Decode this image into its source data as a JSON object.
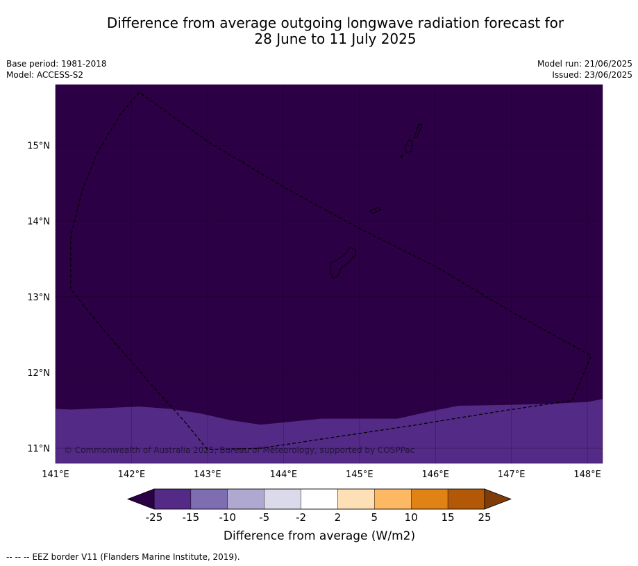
{
  "header": {
    "title_line1": "Difference from average outgoing longwave radiation forecast for",
    "title_line2": "28 June to 11 July 2025",
    "base_period": "Base period: 1981-2018",
    "model": "Model: ACCESS-S2",
    "model_run": "Model run: 21/06/2025",
    "issued": "Issued: 23/06/2025"
  },
  "map": {
    "lon_range": [
      141.0,
      148.2
    ],
    "lat_range": [
      10.8,
      15.8
    ],
    "lon_ticks": [
      "141°E",
      "142°E",
      "143°E",
      "144°E",
      "145°E",
      "146°E",
      "147°E",
      "148°E"
    ],
    "lat_ticks": [
      "15°N",
      "14°N",
      "13°N",
      "12°N",
      "11°N"
    ],
    "background_category": "< -25",
    "background_color": "#2c0044",
    "southern_band_category": "-25 to -15",
    "southern_band_color": "#532a86",
    "southern_band_boundary": [
      [
        141.0,
        11.52
      ],
      [
        141.2,
        11.51
      ],
      [
        142.1,
        11.55
      ],
      [
        142.5,
        11.52
      ],
      [
        142.9,
        11.46
      ],
      [
        143.3,
        11.37
      ],
      [
        143.7,
        11.31
      ],
      [
        144.0,
        11.34
      ],
      [
        144.5,
        11.39
      ],
      [
        145.0,
        11.39
      ],
      [
        145.5,
        11.39
      ],
      [
        145.9,
        11.48
      ],
      [
        146.3,
        11.56
      ],
      [
        146.9,
        11.57
      ],
      [
        147.6,
        11.59
      ],
      [
        148.0,
        11.61
      ],
      [
        148.2,
        11.65
      ]
    ],
    "eez_border": [
      [
        142.1,
        15.7
      ],
      [
        141.85,
        15.4
      ],
      [
        141.55,
        14.9
      ],
      [
        141.35,
        14.4
      ],
      [
        141.2,
        13.8
      ],
      [
        141.2,
        13.1
      ],
      [
        141.6,
        12.6
      ],
      [
        142.25,
        11.85
      ],
      [
        142.7,
        11.35
      ],
      [
        143.0,
        10.98
      ],
      [
        143.7,
        11.0
      ],
      [
        144.7,
        11.15
      ],
      [
        145.7,
        11.3
      ],
      [
        146.8,
        11.48
      ],
      [
        147.8,
        11.63
      ],
      [
        148.05,
        12.22
      ],
      [
        147.0,
        12.8
      ],
      [
        146.0,
        13.4
      ],
      [
        145.0,
        13.9
      ],
      [
        144.0,
        14.45
      ],
      [
        143.0,
        15.05
      ],
      [
        142.1,
        15.7
      ]
    ],
    "islands": [
      {
        "name": "Guam",
        "outline": [
          [
            144.87,
            13.65
          ],
          [
            144.95,
            13.62
          ],
          [
            144.95,
            13.55
          ],
          [
            144.85,
            13.45
          ],
          [
            144.76,
            13.38
          ],
          [
            144.72,
            13.28
          ],
          [
            144.65,
            13.24
          ],
          [
            144.62,
            13.32
          ],
          [
            144.61,
            13.44
          ],
          [
            144.68,
            13.47
          ],
          [
            144.8,
            13.55
          ],
          [
            144.87,
            13.65
          ]
        ]
      },
      {
        "name": "Rota",
        "outline": [
          [
            145.13,
            14.13
          ],
          [
            145.25,
            14.18
          ],
          [
            145.28,
            14.15
          ],
          [
            145.18,
            14.1
          ],
          [
            145.13,
            14.13
          ]
        ]
      },
      {
        "name": "Tinian",
        "outline": [
          [
            145.6,
            14.97
          ],
          [
            145.65,
            15.07
          ],
          [
            145.7,
            15.05
          ],
          [
            145.68,
            14.92
          ],
          [
            145.62,
            14.9
          ],
          [
            145.6,
            14.97
          ]
        ]
      },
      {
        "name": "Saipan",
        "outline": [
          [
            145.72,
            15.1
          ],
          [
            145.78,
            15.28
          ],
          [
            145.82,
            15.27
          ],
          [
            145.8,
            15.2
          ],
          [
            145.75,
            15.1
          ],
          [
            145.72,
            15.1
          ]
        ]
      },
      {
        "name": "Aguijan",
        "outline": [
          [
            145.54,
            14.85
          ],
          [
            145.58,
            14.87
          ],
          [
            145.55,
            14.84
          ],
          [
            145.54,
            14.85
          ]
        ]
      }
    ],
    "copyright": "© Commonwealth of Australia 2025, Bureau of Meteorology, supported by COSPPac"
  },
  "colorbar": {
    "labels": [
      "-25",
      "-15",
      "-10",
      "-5",
      "-2",
      "2",
      "5",
      "10",
      "15",
      "25"
    ],
    "colors": [
      "#532a86",
      "#7e6db1",
      "#afa8d1",
      "#dadaeb",
      "#ffffff",
      "#fee0b6",
      "#fdb863",
      "#e08214",
      "#b35806"
    ],
    "under_color": "#2c0044",
    "over_color": "#7f3b08",
    "title": "Difference from average (W/m2)"
  },
  "footer": {
    "legend_symbol": "-- -- --",
    "legend_text": "EEZ border V11 (Flanders Marine Institute, 2019)."
  }
}
